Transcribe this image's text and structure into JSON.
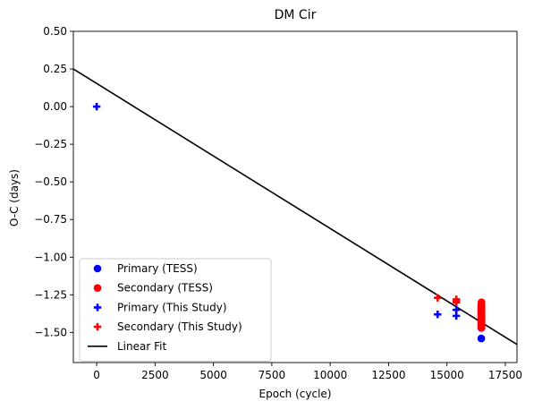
{
  "chart_data": {
    "type": "scatter",
    "title": "DM Cir",
    "xlabel": "Epoch (cycle)",
    "ylabel": "O-C (days)",
    "xlim": [
      -1000,
      18000
    ],
    "ylim": [
      -1.7,
      0.5
    ],
    "xticks": [
      0,
      2500,
      5000,
      7500,
      10000,
      12500,
      15000,
      17500
    ],
    "yticks": [
      0.5,
      0.25,
      0.0,
      -0.25,
      -0.5,
      -0.75,
      -1.0,
      -1.25,
      -1.5
    ],
    "xtick_labels": [
      "0",
      "2500",
      "5000",
      "7500",
      "10000",
      "12500",
      "15000",
      "17500"
    ],
    "ytick_labels": [
      "0.50",
      "0.25",
      "0.00",
      "−0.25",
      "−0.50",
      "−0.75",
      "−1.00",
      "−1.25",
      "−1.50"
    ],
    "grid": false,
    "legend_position": "lower-left",
    "series": [
      {
        "name": "Primary (TESS)",
        "marker": "circle",
        "color": "#0000ff",
        "x": [
          16470,
          16470,
          16470,
          16470,
          16470,
          16470,
          16470,
          16470,
          16470,
          16470,
          16470,
          16470,
          16470,
          16470,
          16470,
          16470,
          16470
        ],
        "y": [
          -1.54,
          -1.47,
          -1.46,
          -1.45,
          -1.44,
          -1.43,
          -1.42,
          -1.41,
          -1.4,
          -1.39,
          -1.38,
          -1.37,
          -1.36,
          -1.35,
          -1.34,
          -1.33,
          -1.32
        ]
      },
      {
        "name": "Secondary (TESS)",
        "marker": "circle",
        "color": "#ff0000",
        "x": [
          16480,
          16480,
          16480,
          16480,
          16480,
          16480,
          16480,
          16480,
          16480,
          16480,
          16480,
          16480,
          16480,
          16480,
          16480,
          16480,
          16480,
          16480
        ],
        "y": [
          -1.47,
          -1.46,
          -1.45,
          -1.44,
          -1.43,
          -1.42,
          -1.41,
          -1.4,
          -1.39,
          -1.38,
          -1.37,
          -1.36,
          -1.35,
          -1.34,
          -1.33,
          -1.32,
          -1.31,
          -1.3
        ]
      },
      {
        "name": "Primary (This Study)",
        "marker": "plus",
        "color": "#0000ff",
        "x": [
          0,
          14600,
          15400,
          15400
        ],
        "y": [
          0.0,
          -1.38,
          -1.35,
          -1.39
        ]
      },
      {
        "name": "Secondary (This Study)",
        "marker": "plus",
        "color": "#ff0000",
        "x": [
          14600,
          15400,
          15400,
          15400
        ],
        "y": [
          -1.27,
          -1.28,
          -1.3,
          -1.29
        ]
      }
    ],
    "fit_line": {
      "name": "Linear Fit",
      "color": "#000000",
      "x": [
        -1000,
        18000
      ],
      "y": [
        0.25,
        -1.58
      ]
    }
  }
}
